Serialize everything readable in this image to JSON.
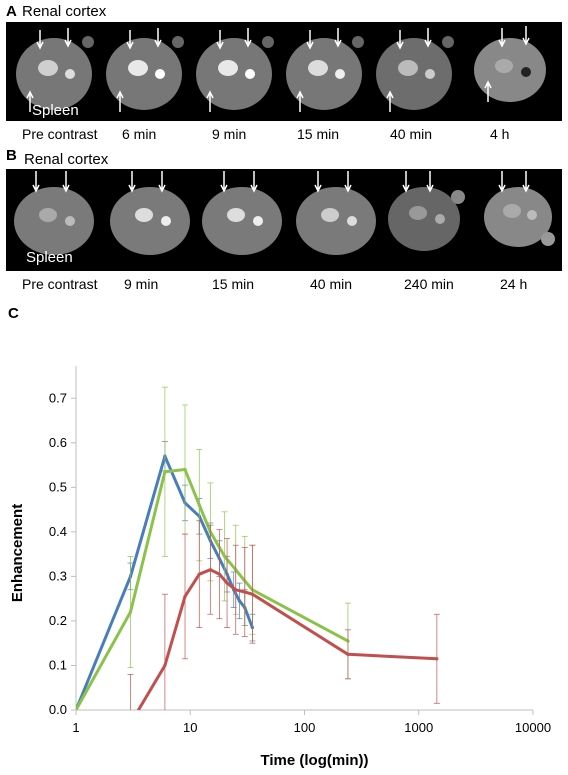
{
  "panel_a": {
    "letter": "A",
    "title": "Renal cortex",
    "spleen_label": "Spleen",
    "timepoints": [
      "Pre contrast",
      "6 min",
      "9 min",
      "15 min",
      "40 min",
      "4 h"
    ]
  },
  "panel_b": {
    "letter": "B",
    "title": "Renal cortex",
    "spleen_label": "Spleen",
    "timepoints": [
      "Pre contrast",
      "9 min",
      "15 min",
      "40 min",
      "240  min",
      "24 h"
    ]
  },
  "panel_c": {
    "letter": "C"
  },
  "chart_data": {
    "type": "line",
    "xlabel": "Time (log(min))",
    "ylabel": "Enhancement",
    "x_scale": "log",
    "xlim": [
      1,
      10000
    ],
    "ylim": [
      0.0,
      0.75
    ],
    "x_ticks": [
      "1",
      "10",
      "100",
      "1000",
      "10000"
    ],
    "y_ticks": [
      "0.0",
      "0.1",
      "0.2",
      "0.3",
      "0.4",
      "0.5",
      "0.6",
      "0.7"
    ],
    "grid": false,
    "series": [
      {
        "color": "#4a7ebb",
        "x": [
          1,
          3,
          6,
          9,
          12,
          15,
          18,
          21,
          24,
          27,
          30,
          35
        ],
        "y": [
          0.0,
          0.3,
          0.57,
          0.465,
          0.435,
          0.38,
          0.34,
          0.305,
          0.27,
          0.245,
          0.23,
          0.185
        ],
        "err": [
          0.0,
          0.03,
          0.033,
          0.04,
          0.04,
          0.04,
          0.04,
          0.04,
          0.04,
          0.04,
          0.04,
          0.03
        ]
      },
      {
        "color": "#8bc34a",
        "x": [
          1,
          3,
          6,
          9,
          12,
          15,
          20,
          25,
          30,
          35,
          240
        ],
        "y": [
          0.0,
          0.22,
          0.535,
          0.54,
          0.46,
          0.4,
          0.345,
          0.315,
          0.29,
          0.27,
          0.155
        ],
        "err": [
          0.0,
          0.125,
          0.19,
          0.145,
          0.125,
          0.11,
          0.1,
          0.1,
          0.1,
          0.1,
          0.085
        ]
      },
      {
        "color": "#c0504d",
        "x": [
          3,
          6,
          9,
          12,
          15,
          18,
          21,
          25,
          30,
          35,
          240,
          1440
        ],
        "y": [
          -0.03,
          0.1,
          0.255,
          0.305,
          0.315,
          0.305,
          0.285,
          0.27,
          0.265,
          0.26,
          0.125,
          0.115
        ],
        "err": [
          0.11,
          0.16,
          0.14,
          0.12,
          0.1,
          0.1,
          0.1,
          0.1,
          0.1,
          0.11,
          0.055,
          0.1
        ]
      }
    ]
  }
}
